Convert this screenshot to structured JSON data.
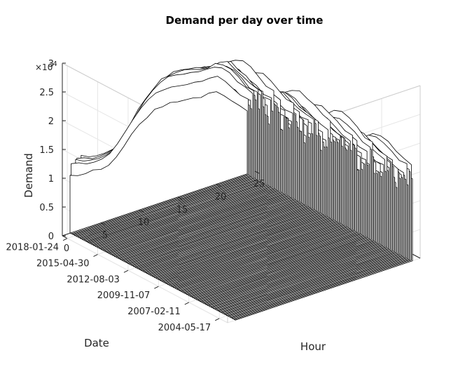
{
  "chart_data": {
    "type": "3d-line-waterfall",
    "title": "Demand per day over time",
    "xlabel": "Hour",
    "ylabel": "Date",
    "zlabel": "Demand",
    "z_exponent_base": "×10",
    "z_exponent_power": "4",
    "xlim": [
      0,
      25
    ],
    "xticks": [
      "0",
      "5",
      "10",
      "15",
      "20",
      "25"
    ],
    "yticks": [
      "2004-05-17",
      "2007-02-11",
      "2009-11-07",
      "2012-08-03",
      "2015-04-30",
      "2018-01-24"
    ],
    "zlim": [
      0,
      3
    ],
    "zticks": [
      "0",
      "0.5",
      "1",
      "1.5",
      "2",
      "2.5",
      "3"
    ],
    "grid": true,
    "line_color": "#000000",
    "profile": {
      "hours": [
        1,
        2,
        3,
        4,
        5,
        6,
        7,
        8,
        9,
        10,
        11,
        12,
        13,
        14,
        15,
        16,
        17,
        18,
        19,
        20,
        21,
        22,
        23,
        24
      ],
      "typical_demand": [
        1.35,
        1.3,
        1.27,
        1.25,
        1.26,
        1.3,
        1.42,
        1.6,
        1.8,
        1.98,
        2.1,
        2.18,
        2.22,
        2.22,
        2.2,
        2.17,
        2.14,
        2.13,
        2.15,
        2.1,
        1.95,
        1.78,
        1.6,
        1.47
      ]
    }
  }
}
